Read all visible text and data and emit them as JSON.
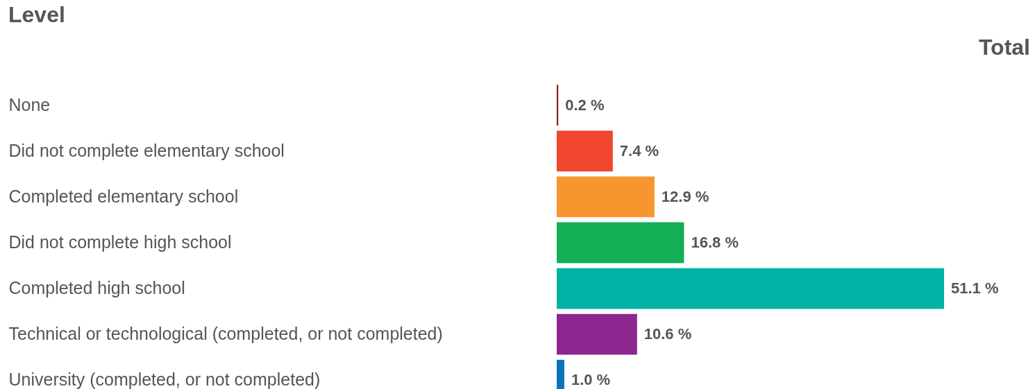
{
  "chart_data": {
    "type": "bar",
    "orientation": "horizontal",
    "ylabel": "Level",
    "annotations": [
      "Total"
    ],
    "categories": [
      "None",
      "Did not complete elementary school",
      "Completed elementary school",
      "Did not complete high school",
      "Completed high school",
      "Technical or technological (completed, or not completed)",
      "University (completed, or not completed)"
    ],
    "values": [
      0.2,
      7.4,
      12.9,
      16.8,
      51.1,
      10.6,
      1.0
    ],
    "value_labels": [
      "0.2 %",
      "7.4 %",
      "12.9 %",
      "16.8 %",
      "51.1 %",
      "10.6 %",
      "1.0 %"
    ],
    "colors": [
      "#8b1a1a",
      "#f0462e",
      "#f7962f",
      "#14ae55",
      "#00b2a5",
      "#8c2790",
      "#0a74b8"
    ],
    "tick_labels": "y",
    "legend": false
  }
}
